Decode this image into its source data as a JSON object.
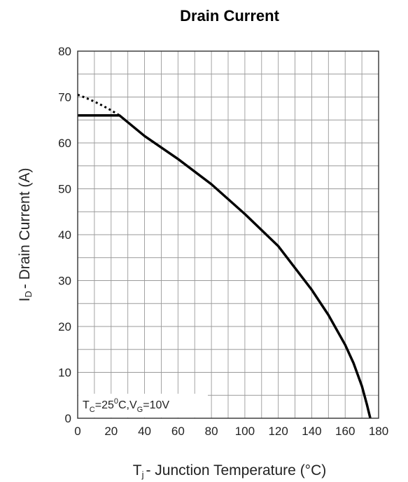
{
  "chart_data": {
    "type": "line",
    "title": "Drain Current",
    "xlabel": {
      "main": "T",
      "sub": "j",
      "rest": "- Junction Temperature (°C)"
    },
    "ylabel": {
      "main": "I",
      "sub": "D",
      "rest": "- Drain Current (A)"
    },
    "xlim": [
      0,
      180
    ],
    "ylim": [
      0,
      80
    ],
    "xticks": [
      0,
      20,
      40,
      60,
      80,
      100,
      120,
      140,
      160,
      180
    ],
    "yticks": [
      0,
      10,
      20,
      30,
      40,
      50,
      60,
      70,
      80
    ],
    "grid": true,
    "annotation": {
      "t": "T",
      "t_sub": "C",
      "eq1": "=25",
      "deg": "0",
      "mid": "C,V",
      "v_sub": "G",
      "eq2": "=10V"
    },
    "series": [
      {
        "style": "solid",
        "color": "#000000",
        "x": [
          0,
          25,
          40,
          60,
          80,
          100,
          120,
          140,
          150,
          160,
          165,
          170,
          173,
          175
        ],
        "y": [
          66,
          66,
          61.5,
          56.5,
          51,
          44.5,
          37.5,
          28,
          22.5,
          16,
          12,
          7,
          3,
          0
        ]
      },
      {
        "style": "dotted",
        "color": "#000000",
        "x": [
          0,
          5,
          10,
          15,
          20,
          25
        ],
        "y": [
          70.5,
          69.8,
          69.0,
          68.1,
          67.1,
          66
        ]
      }
    ]
  }
}
